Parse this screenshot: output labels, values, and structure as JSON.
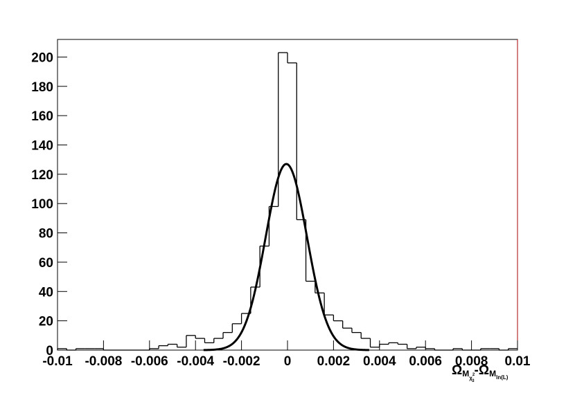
{
  "chart_data": {
    "type": "histogram",
    "bins": [
      -0.01,
      -0.0096,
      -0.0092,
      -0.0088,
      -0.0084,
      -0.008,
      -0.0076,
      -0.0072,
      -0.0068,
      -0.0064,
      -0.006,
      -0.0056,
      -0.0052,
      -0.0048,
      -0.0044,
      -0.004,
      -0.0036,
      -0.0032,
      -0.0028,
      -0.0024,
      -0.002,
      -0.0016,
      -0.0012,
      -0.0008,
      -0.0004,
      0,
      0.0004,
      0.0008,
      0.0012,
      0.0016,
      0.002,
      0.0024,
      0.0028,
      0.0032,
      0.0036,
      0.004,
      0.0044,
      0.0048,
      0.0052,
      0.0056,
      0.006,
      0.0064,
      0.0068,
      0.0072,
      0.0076,
      0.008,
      0.0084,
      0.0088,
      0.0092,
      0.0096,
      0.01
    ],
    "values": [
      1,
      0,
      1,
      1,
      1,
      0,
      0,
      0,
      0,
      0,
      1,
      3,
      4,
      2,
      10,
      8,
      5,
      8,
      12,
      18,
      25,
      43,
      71,
      98,
      203,
      196,
      89,
      47,
      39,
      24,
      20,
      15,
      12,
      8,
      2,
      4,
      5,
      4,
      1,
      2,
      1,
      0,
      0,
      1,
      0,
      0,
      1,
      1,
      0,
      1
    ],
    "color": "#000000",
    "fit": {
      "type": "gaussian",
      "amplitude": 127,
      "mean": -5e-05,
      "sigma": 0.0009,
      "color": "#000000"
    },
    "xlim": [
      -0.01,
      0.01
    ],
    "xticks": [
      -0.01,
      -0.008,
      -0.006,
      -0.004,
      -0.002,
      0,
      0.002,
      0.004,
      0.006,
      0.008,
      0.01
    ],
    "ylim": [
      0,
      212
    ],
    "yticks": [
      0,
      20,
      40,
      60,
      80,
      100,
      120,
      140,
      160,
      180,
      200
    ],
    "x_label": [
      "Ω",
      "M",
      "χ",
      "2",
      "3",
      "-Ω",
      "M",
      "ln(L)"
    ]
  }
}
